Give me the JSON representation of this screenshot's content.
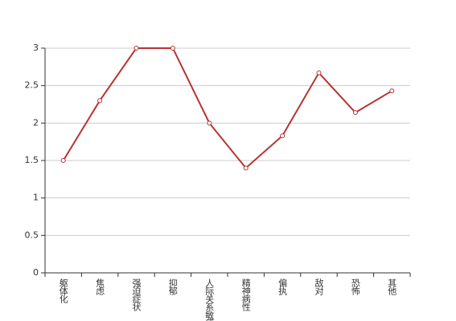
{
  "chart_data": {
    "type": "line",
    "categories": [
      "躯体化",
      "焦虑",
      "强迫症状",
      "抑郁",
      "人际关系敏感",
      "精神病性",
      "偏执",
      "敌对",
      "恐怖",
      "其他"
    ],
    "series": [
      {
        "color": "#b83232",
        "values": [
          1.5,
          2.3,
          3,
          3,
          2,
          1.4,
          1.83,
          2.67,
          2.14,
          2.43
        ]
      }
    ],
    "ylim": [
      0,
      3
    ],
    "yticks": [
      0,
      0.5,
      1,
      1.5,
      2,
      2.5,
      3
    ],
    "grid": true
  }
}
